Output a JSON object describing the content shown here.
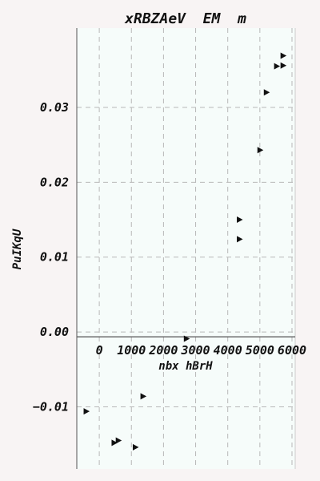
{
  "chart_data": {
    "type": "scatter",
    "title": "xRBZAeV  EM  m",
    "xlabel": "nbx hBrH",
    "ylabel": "PuIKqU",
    "xlim": [
      -700,
      6100
    ],
    "ylim": [
      -0.0183,
      0.0406
    ],
    "xticks": [
      0,
      1000,
      2000,
      3000,
      4000,
      5000,
      6000
    ],
    "xtick_labels": [
      "0",
      "1000",
      "2000",
      "3000",
      "4000",
      "5000",
      "6000"
    ],
    "yticks": [
      -0.01,
      0.0,
      0.01,
      0.02,
      0.03
    ],
    "ytick_labels": [
      "−0.01",
      "0.00",
      "0.01",
      "0.02",
      "0.03"
    ],
    "grid": true,
    "marker": "triangle-right",
    "colors": {
      "background": "#f8f4f4",
      "plot_bg": "#f6fcfa",
      "marker": "#111111",
      "axis": "#555555"
    },
    "points": [
      {
        "x": -400,
        "y": -0.0106
      },
      {
        "x": 1370,
        "y": -0.0086
      },
      {
        "x": 470,
        "y": -0.0148
      },
      {
        "x": 600,
        "y": -0.0145
      },
      {
        "x": 1130,
        "y": -0.0154
      },
      {
        "x": 2720,
        "y": -0.0009
      },
      {
        "x": 4370,
        "y": 0.015
      },
      {
        "x": 4370,
        "y": 0.0124
      },
      {
        "x": 5010,
        "y": 0.0243
      },
      {
        "x": 5210,
        "y": 0.032
      },
      {
        "x": 5530,
        "y": 0.0355
      },
      {
        "x": 5730,
        "y": 0.0369
      },
      {
        "x": 5730,
        "y": 0.0356
      }
    ]
  }
}
